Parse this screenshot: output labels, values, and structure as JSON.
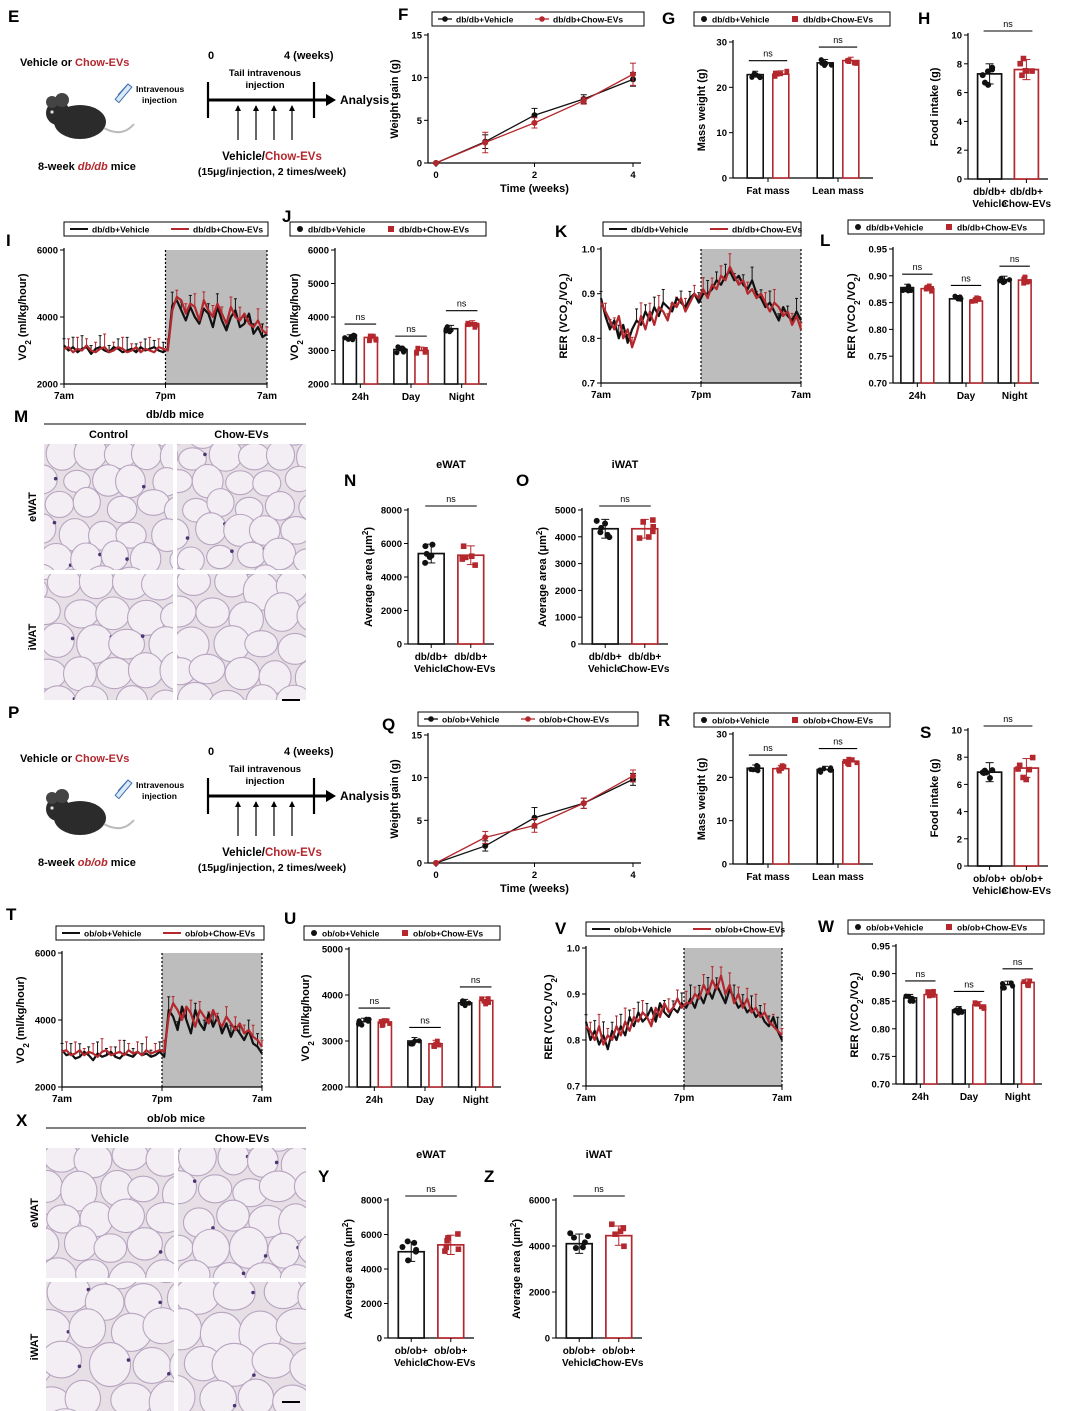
{
  "colors": {
    "vehicle": "#111111",
    "chow": "#b3272d",
    "dark_period": "#bdbdbd",
    "adipose_light": "#e6dfe5",
    "adipose_border": "#b7a5c0",
    "nuclei": "#4b3472"
  },
  "sig_label": "ns",
  "schematics": [
    {
      "letter": "E",
      "condition_prefix": "Vehicle or ",
      "condition_highlight": "Chow-EVs",
      "injection_label": "Intravenous injection",
      "mouse_prefix": "8-week ",
      "mouse_strain": "db/db",
      "mouse_suffix": " mice",
      "start": "0",
      "end": "4 (weeks)",
      "tail_label": "Tail intravenous injection",
      "analysis": "Analysis",
      "dose_prefix": "Vehicle/",
      "dose_highlight": "Chow-EVs",
      "dose_detail": "(15μg/injection, 2 times/week)"
    },
    {
      "letter": "P",
      "condition_prefix": "Vehicle or ",
      "condition_highlight": "Chow-EVs",
      "injection_label": "Intravenous injection",
      "mouse_prefix": "8-week ",
      "mouse_strain": "ob/ob",
      "mouse_suffix": " mice",
      "start": "0",
      "end": "4 (weeks)",
      "tail_label": "Tail intravenous injection",
      "analysis": "Analysis",
      "dose_prefix": "Vehicle/",
      "dose_highlight": "Chow-EVs",
      "dose_detail": "(15μg/injection, 2 times/week)"
    }
  ],
  "histology": [
    {
      "letter": "M",
      "title": "db/db mice",
      "columns": [
        "Control",
        "Chow-EVs"
      ],
      "rows": [
        "eWAT",
        "iWAT"
      ]
    },
    {
      "letter": "X",
      "title": "ob/ob mice",
      "columns": [
        "Vehicle",
        "Chow-EVs"
      ],
      "rows": [
        "eWAT",
        "iWAT"
      ]
    }
  ],
  "chart_data": [
    {
      "id": "F",
      "type": "line",
      "xlabel": "Time (weeks)",
      "ylabel": "Weight gain (g)",
      "ylim": [
        0,
        15
      ],
      "yticks": [
        0,
        5,
        10,
        15
      ],
      "x": [
        0,
        1,
        2,
        3,
        4
      ],
      "series": [
        {
          "name": "db/db+Vehicle",
          "values": [
            0,
            2.5,
            5.6,
            7.5,
            9.8
          ],
          "err": [
            0,
            0.8,
            0.8,
            0.5,
            0.8
          ]
        },
        {
          "name": "db/db+Chow-EVs",
          "values": [
            0,
            2.4,
            4.7,
            7.3,
            10.4
          ],
          "err": [
            0,
            1.2,
            0.6,
            0.4,
            1.3
          ]
        }
      ]
    },
    {
      "id": "G",
      "type": "bar",
      "ylabel": "Mass weight (g)",
      "ylim": [
        0,
        30
      ],
      "yticks": [
        0,
        10,
        20,
        30
      ],
      "categories": [
        "Fat mass",
        "Lean mass"
      ],
      "series": [
        {
          "name": "db/db+Vehicle",
          "values": [
            22.8,
            25.4
          ]
        },
        {
          "name": "db/db+Chow-EVs",
          "values": [
            22.9,
            25.9
          ]
        }
      ],
      "annotations": [
        "ns",
        "ns"
      ]
    },
    {
      "id": "H",
      "type": "bar",
      "ylabel": "Food intake (g)",
      "ylim": [
        0,
        10
      ],
      "yticks": [
        0,
        2,
        4,
        6,
        8,
        10
      ],
      "categories": [
        "db/db+ Vehicle",
        "db/db+ Chow-EVs"
      ],
      "values": [
        7.3,
        7.6
      ],
      "annotations": [
        "ns"
      ]
    },
    {
      "id": "I",
      "type": "line",
      "ylabel": "VO2 (ml/kg/hour)",
      "ylim": [
        2000,
        6000
      ],
      "yticks": [
        2000,
        4000,
        6000
      ],
      "xticklabels": [
        "7am",
        "7pm",
        "7am"
      ],
      "legend": [
        "db/db+Vehicle",
        "db/db+Chow-EVs"
      ],
      "series": [
        {
          "name": "db/db+Vehicle",
          "values": [
            3150,
            3000,
            3100,
            2950,
            3050,
            3100,
            2900,
            3050,
            3100,
            3000,
            2950,
            3100,
            3050,
            2950,
            3000,
            3050,
            2950,
            3100,
            3000,
            3050,
            3100,
            3000,
            2950,
            3050,
            4350,
            4500,
            4200,
            3900,
            4300,
            4000,
            3800,
            4250,
            4100,
            3700,
            4300,
            3900,
            3600,
            4000,
            4200,
            3700,
            3800,
            4100,
            3500,
            3700,
            3400,
            3500
          ]
        },
        {
          "name": "db/db+Chow-EVs",
          "values": [
            3050,
            3100,
            2950,
            3050,
            3000,
            3150,
            3000,
            2950,
            3050,
            3100,
            2950,
            3000,
            3100,
            3050,
            2950,
            3000,
            3100,
            2950,
            3050,
            3000,
            2950,
            3100,
            3050,
            3000,
            4200,
            4600,
            4500,
            4100,
            4400,
            4300,
            3900,
            4500,
            4200,
            4000,
            4400,
            4100,
            3800,
            4300,
            4000,
            3900,
            4100,
            3800,
            3700,
            3900,
            3600,
            3500
          ]
        }
      ]
    },
    {
      "id": "J",
      "type": "bar",
      "ylabel": "VO2 (ml/kg/hour)",
      "ylim": [
        2000,
        6000
      ],
      "yticks": [
        2000,
        3000,
        4000,
        5000,
        6000
      ],
      "categories": [
        "24h",
        "Day",
        "Night"
      ],
      "series": [
        {
          "name": "db/db+Vehicle",
          "values": [
            3370,
            3030,
            3650
          ]
        },
        {
          "name": "db/db+Chow-EVs",
          "values": [
            3390,
            3000,
            3790
          ]
        }
      ],
      "annotations": [
        "ns",
        "ns",
        "ns"
      ]
    },
    {
      "id": "K",
      "type": "line",
      "ylabel": "RER (VCO2/VO2)",
      "ylim": [
        0.7,
        1.0
      ],
      "yticks": [
        0.7,
        0.8,
        0.9,
        1.0
      ],
      "xticklabels": [
        "7am",
        "7pm",
        "7am"
      ],
      "legend": [
        "db/db+Vehicle",
        "db/db+Chow-EVs"
      ],
      "series": [
        {
          "name": "db/db+Vehicle",
          "values": [
            0.89,
            0.85,
            0.82,
            0.84,
            0.8,
            0.83,
            0.79,
            0.82,
            0.84,
            0.83,
            0.86,
            0.84,
            0.87,
            0.85,
            0.88,
            0.87,
            0.86,
            0.89,
            0.88,
            0.87,
            0.89,
            0.9,
            0.88,
            0.9,
            0.9,
            0.91,
            0.93,
            0.92,
            0.94,
            0.95,
            0.93,
            0.94,
            0.92,
            0.91,
            0.93,
            0.9,
            0.89,
            0.87,
            0.88,
            0.86,
            0.84,
            0.87,
            0.85,
            0.84,
            0.86,
            0.84
          ]
        },
        {
          "name": "db/db+Chow-EVs",
          "values": [
            0.88,
            0.86,
            0.84,
            0.82,
            0.85,
            0.8,
            0.82,
            0.78,
            0.81,
            0.85,
            0.82,
            0.86,
            0.83,
            0.87,
            0.86,
            0.84,
            0.88,
            0.87,
            0.89,
            0.86,
            0.88,
            0.9,
            0.89,
            0.91,
            0.89,
            0.92,
            0.91,
            0.94,
            0.93,
            0.96,
            0.94,
            0.92,
            0.93,
            0.9,
            0.91,
            0.89,
            0.9,
            0.88,
            0.86,
            0.88,
            0.87,
            0.85,
            0.86,
            0.83,
            0.85,
            0.82
          ]
        }
      ]
    },
    {
      "id": "L",
      "type": "bar",
      "ylabel": "RER (VCO2/VO2)",
      "ylim": [
        0.7,
        0.95
      ],
      "yticks": [
        0.7,
        0.75,
        0.8,
        0.85,
        0.9,
        0.95
      ],
      "categories": [
        "24h",
        "Day",
        "Night"
      ],
      "series": [
        {
          "name": "db/db+Vehicle",
          "values": [
            0.878,
            0.857,
            0.893
          ]
        },
        {
          "name": "db/db+Chow-EVs",
          "values": [
            0.876,
            0.853,
            0.892
          ]
        }
      ],
      "annotations": [
        "ns",
        "ns",
        "ns"
      ]
    },
    {
      "id": "N",
      "type": "bar",
      "title": "eWAT",
      "ylabel": "Average area (μm2)",
      "ylim": [
        0,
        8000
      ],
      "yticks": [
        0,
        2000,
        4000,
        6000,
        8000
      ],
      "categories": [
        "db/db+ Vehicle",
        "db/db+ Chow-EVs"
      ],
      "values": [
        5400,
        5300
      ],
      "annotations": [
        "ns"
      ]
    },
    {
      "id": "O",
      "type": "bar",
      "title": "iWAT",
      "ylabel": "Average area (μm2)",
      "ylim": [
        0,
        5000
      ],
      "yticks": [
        0,
        1000,
        2000,
        3000,
        4000,
        5000
      ],
      "categories": [
        "db/db+ Vehicle",
        "db/db+ Chow-EVs"
      ],
      "values": [
        4300,
        4300
      ],
      "annotations": [
        "ns"
      ]
    },
    {
      "id": "Q",
      "type": "line",
      "xlabel": "Time (weeks)",
      "ylabel": "Weight gain (g)",
      "ylim": [
        0,
        15
      ],
      "yticks": [
        0,
        5,
        10,
        15
      ],
      "x": [
        0,
        1,
        2,
        3,
        4
      ],
      "series": [
        {
          "name": "ob/ob+Vehicle",
          "values": [
            0,
            2.0,
            5.3,
            7.0,
            9.8
          ],
          "err": [
            0,
            0.6,
            1.2,
            0.6,
            0.7
          ]
        },
        {
          "name": "ob/ob+Chow-EVs",
          "values": [
            0,
            3.0,
            4.4,
            7.0,
            10.2
          ],
          "err": [
            0,
            0.7,
            0.8,
            0.6,
            0.7
          ]
        }
      ]
    },
    {
      "id": "R",
      "type": "bar",
      "ylabel": "Mass weight (g)",
      "ylim": [
        0,
        30
      ],
      "yticks": [
        0,
        10,
        20,
        30
      ],
      "categories": [
        "Fat mass",
        "Lean mass"
      ],
      "series": [
        {
          "name": "ob/ob+Vehicle",
          "values": [
            22.1,
            21.8
          ]
        },
        {
          "name": "ob/ob+Chow-EVs",
          "values": [
            22.0,
            23.6
          ]
        }
      ],
      "annotations": [
        "ns",
        "ns"
      ]
    },
    {
      "id": "S",
      "type": "bar",
      "ylabel": "Food intake (g)",
      "ylim": [
        0,
        10
      ],
      "yticks": [
        0,
        2,
        4,
        6,
        8,
        10
      ],
      "categories": [
        "ob/ob+ Vehicle",
        "ob/ob+ Chow-EVs"
      ],
      "values": [
        6.9,
        7.2
      ],
      "annotations": [
        "ns"
      ]
    },
    {
      "id": "T",
      "type": "line",
      "ylabel": "VO2 (ml/kg/hour)",
      "ylim": [
        2000,
        6000
      ],
      "yticks": [
        2000,
        4000,
        6000
      ],
      "xticklabels": [
        "7am",
        "7pm",
        "7am"
      ],
      "legend": [
        "ob/ob+Vehicle",
        "ob/ob+Chow-EVs"
      ],
      "series": [
        {
          "name": "ob/ob+Vehicle",
          "values": [
            3100,
            2950,
            3000,
            2850,
            2900,
            3050,
            2950,
            2800,
            3000,
            2900,
            2950,
            3050,
            2900,
            2850,
            3000,
            2950,
            2900,
            3050,
            2950,
            3000,
            2900,
            2950,
            3050,
            2900,
            4300,
            4100,
            3700,
            4400,
            4000,
            3600,
            4300,
            3900,
            3700,
            4200,
            3800,
            4100,
            3600,
            3900,
            3500,
            3800,
            3600,
            3400,
            3700,
            3300,
            3200,
            3000
          ]
        },
        {
          "name": "ob/ob+Chow-EVs",
          "values": [
            3050,
            3100,
            2950,
            3000,
            3100,
            2950,
            3050,
            3000,
            2900,
            3050,
            3100,
            2950,
            3000,
            3050,
            2950,
            3100,
            3000,
            3050,
            2950,
            3100,
            3000,
            3050,
            3100,
            3050,
            4100,
            4500,
            4300,
            4000,
            4400,
            4200,
            3800,
            4300,
            4100,
            3900,
            4300,
            4000,
            3800,
            4100,
            3900,
            3700,
            3900,
            3600,
            3700,
            3500,
            3400,
            3200
          ]
        }
      ]
    },
    {
      "id": "U",
      "type": "bar",
      "ylabel": "VO2 (ml/kg/hour)",
      "ylim": [
        2000,
        5000
      ],
      "yticks": [
        2000,
        3000,
        4000,
        5000
      ],
      "categories": [
        "24h",
        "Day",
        "Night"
      ],
      "series": [
        {
          "name": "ob/ob+Vehicle",
          "values": [
            3420,
            3000,
            3830
          ]
        },
        {
          "name": "ob/ob+Chow-EVs",
          "values": [
            3410,
            2940,
            3880
          ]
        }
      ],
      "annotations": [
        "ns",
        "ns",
        "ns"
      ]
    },
    {
      "id": "V",
      "type": "line",
      "ylabel": "RER (VCO2/VO2)",
      "ylim": [
        0.7,
        1.0
      ],
      "yticks": [
        0.7,
        0.8,
        0.9,
        1.0
      ],
      "xticklabels": [
        "7am",
        "7pm",
        "7am"
      ],
      "legend": [
        "ob/ob+Vehicle",
        "ob/ob+Chow-EVs"
      ],
      "series": [
        {
          "name": "ob/ob+Vehicle",
          "values": [
            0.84,
            0.8,
            0.82,
            0.79,
            0.81,
            0.78,
            0.82,
            0.8,
            0.83,
            0.81,
            0.85,
            0.83,
            0.86,
            0.84,
            0.85,
            0.87,
            0.84,
            0.88,
            0.86,
            0.85,
            0.87,
            0.86,
            0.88,
            0.87,
            0.89,
            0.87,
            0.9,
            0.88,
            0.91,
            0.89,
            0.92,
            0.9,
            0.88,
            0.91,
            0.89,
            0.87,
            0.88,
            0.86,
            0.87,
            0.85,
            0.86,
            0.84,
            0.83,
            0.85,
            0.82,
            0.8
          ]
        },
        {
          "name": "ob/ob+Chow-EVs",
          "values": [
            0.83,
            0.82,
            0.8,
            0.83,
            0.79,
            0.81,
            0.8,
            0.83,
            0.81,
            0.84,
            0.82,
            0.85,
            0.84,
            0.86,
            0.85,
            0.83,
            0.87,
            0.85,
            0.88,
            0.86,
            0.87,
            0.89,
            0.87,
            0.88,
            0.88,
            0.9,
            0.89,
            0.92,
            0.9,
            0.93,
            0.91,
            0.94,
            0.9,
            0.92,
            0.88,
            0.9,
            0.87,
            0.89,
            0.86,
            0.87,
            0.85,
            0.86,
            0.84,
            0.83,
            0.82,
            0.81
          ]
        }
      ]
    },
    {
      "id": "W",
      "type": "bar",
      "ylabel": "RER (VCO2/VO2)",
      "ylim": [
        0.7,
        0.95
      ],
      "yticks": [
        0.7,
        0.75,
        0.8,
        0.85,
        0.9,
        0.95
      ],
      "categories": [
        "24h",
        "Day",
        "Night"
      ],
      "series": [
        {
          "name": "ob/ob+Vehicle",
          "values": [
            0.856,
            0.834,
            0.88
          ]
        },
        {
          "name": "ob/ob+Chow-EVs",
          "values": [
            0.862,
            0.843,
            0.884
          ]
        }
      ],
      "annotations": [
        "ns",
        "ns",
        "ns"
      ]
    },
    {
      "id": "Y",
      "type": "bar",
      "title": "eWAT",
      "ylabel": "Average area (μm2)",
      "ylim": [
        0,
        8000
      ],
      "yticks": [
        0,
        2000,
        4000,
        6000,
        8000
      ],
      "categories": [
        "ob/ob+ Vehicle",
        "ob/ob+ Chow-EVs"
      ],
      "values": [
        5000,
        5400
      ],
      "annotations": [
        "ns"
      ]
    },
    {
      "id": "Z",
      "type": "bar",
      "title": "iWAT",
      "ylabel": "Average area (μm2)",
      "ylim": [
        0,
        6000
      ],
      "yticks": [
        0,
        2000,
        4000,
        6000
      ],
      "categories": [
        "ob/ob+ Vehicle",
        "ob/ob+ Chow-EVs"
      ],
      "values": [
        4100,
        4450
      ],
      "annotations": [
        "ns"
      ]
    }
  ]
}
